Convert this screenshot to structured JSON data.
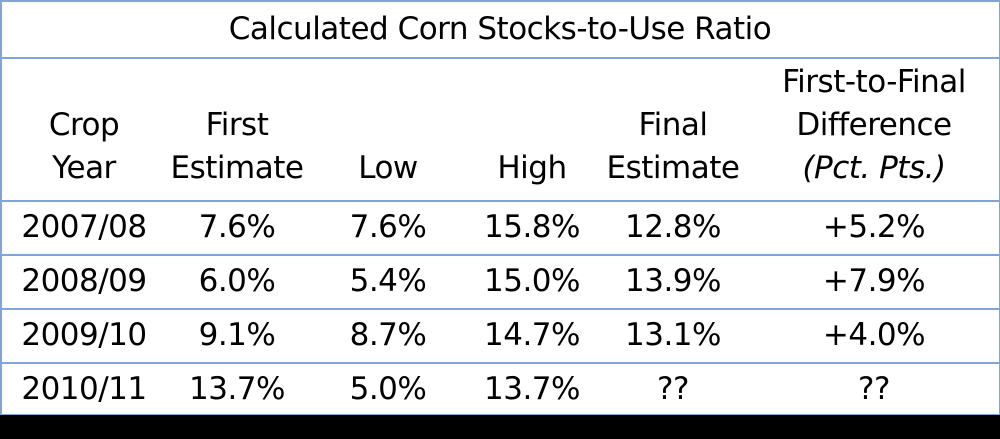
{
  "chart_data": {
    "type": "table",
    "title": "Calculated Corn Stocks-to-Use Ratio",
    "columns": [
      {
        "lines": [
          "Crop",
          "Year"
        ],
        "unit": ""
      },
      {
        "lines": [
          "First",
          "Estimate"
        ],
        "unit": ""
      },
      {
        "lines": [
          "Low"
        ],
        "unit": ""
      },
      {
        "lines": [
          "High"
        ],
        "unit": ""
      },
      {
        "lines": [
          "Final",
          "Estimate"
        ],
        "unit": ""
      },
      {
        "lines": [
          "First-to-Final",
          "Difference"
        ],
        "unit": "(Pct. Pts.)"
      }
    ],
    "rows": [
      [
        "2007/08",
        "7.6%",
        "7.6%",
        "15.8%",
        "12.8%",
        "+5.2%"
      ],
      [
        "2008/09",
        "6.0%",
        "5.4%",
        "15.0%",
        "13.9%",
        "+7.9%"
      ],
      [
        "2009/10",
        "9.1%",
        "8.7%",
        "14.7%",
        "13.1%",
        "+4.0%"
      ],
      [
        "2010/11",
        "13.7%",
        "5.0%",
        "13.7%",
        "??",
        "??"
      ]
    ]
  }
}
